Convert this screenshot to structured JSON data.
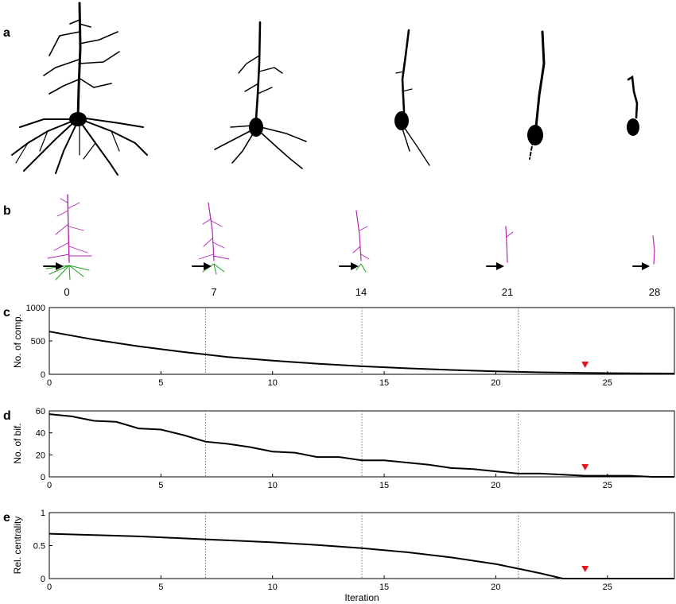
{
  "panels": {
    "a": "a",
    "b": "b",
    "c": "c",
    "d": "d",
    "e": "e"
  },
  "morphology_iterations": [
    "0",
    "7",
    "14",
    "21",
    "28"
  ],
  "colors": {
    "soma_neuron": "#000000",
    "apical": "#b326b3",
    "basal": "#1e9e1e",
    "curve": "#000000",
    "marker": "#e8141c",
    "vline": "#777777"
  },
  "chart_data": [
    {
      "type": "line",
      "panel": "c",
      "ylabel": "No. of comp.",
      "xlabel": "",
      "xlim": [
        0,
        28
      ],
      "ylim": [
        0,
        1000
      ],
      "xticks": [
        0,
        5,
        10,
        15,
        20,
        25
      ],
      "yticks": [
        0,
        500,
        1000
      ],
      "vlines": [
        7,
        14,
        21
      ],
      "marker_x": 24,
      "x": [
        0,
        2,
        4,
        6,
        8,
        10,
        12,
        14,
        16,
        18,
        20,
        22,
        24,
        26,
        28
      ],
      "values": [
        640,
        520,
        420,
        335,
        260,
        205,
        160,
        120,
        90,
        65,
        45,
        30,
        20,
        15,
        12
      ]
    },
    {
      "type": "line",
      "panel": "d",
      "ylabel": "No. of bif.",
      "xlabel": "",
      "xlim": [
        0,
        28
      ],
      "ylim": [
        0,
        60
      ],
      "xticks": [
        0,
        5,
        10,
        15,
        20,
        25
      ],
      "yticks": [
        0,
        20,
        40,
        60
      ],
      "vlines": [
        7,
        14,
        21
      ],
      "marker_x": 24,
      "x": [
        0,
        1,
        2,
        3,
        4,
        5,
        6,
        7,
        8,
        9,
        10,
        11,
        12,
        13,
        14,
        15,
        16,
        17,
        18,
        19,
        20,
        21,
        22,
        23,
        24,
        25,
        26,
        27,
        28
      ],
      "values": [
        57,
        55,
        51,
        50,
        44,
        43,
        38,
        32,
        30,
        27,
        23,
        22,
        18,
        18,
        15,
        15,
        13,
        11,
        8,
        7,
        5,
        3,
        3,
        2,
        1,
        1,
        1,
        0,
        0
      ]
    },
    {
      "type": "line",
      "panel": "e",
      "ylabel": "Rel. centrality",
      "xlabel": "Iteration",
      "xlim": [
        0,
        28
      ],
      "ylim": [
        0,
        1
      ],
      "xticks": [
        0,
        5,
        10,
        15,
        20,
        25
      ],
      "yticks": [
        0,
        0.5,
        1
      ],
      "vlines": [
        7,
        14,
        21
      ],
      "marker_x": 24,
      "x": [
        0,
        2,
        4,
        6,
        8,
        10,
        12,
        14,
        16,
        18,
        20,
        21,
        22,
        23,
        24,
        26,
        28
      ],
      "values": [
        0.68,
        0.66,
        0.64,
        0.61,
        0.58,
        0.55,
        0.51,
        0.46,
        0.4,
        0.32,
        0.22,
        0.15,
        0.08,
        0,
        0,
        0,
        0
      ]
    }
  ]
}
